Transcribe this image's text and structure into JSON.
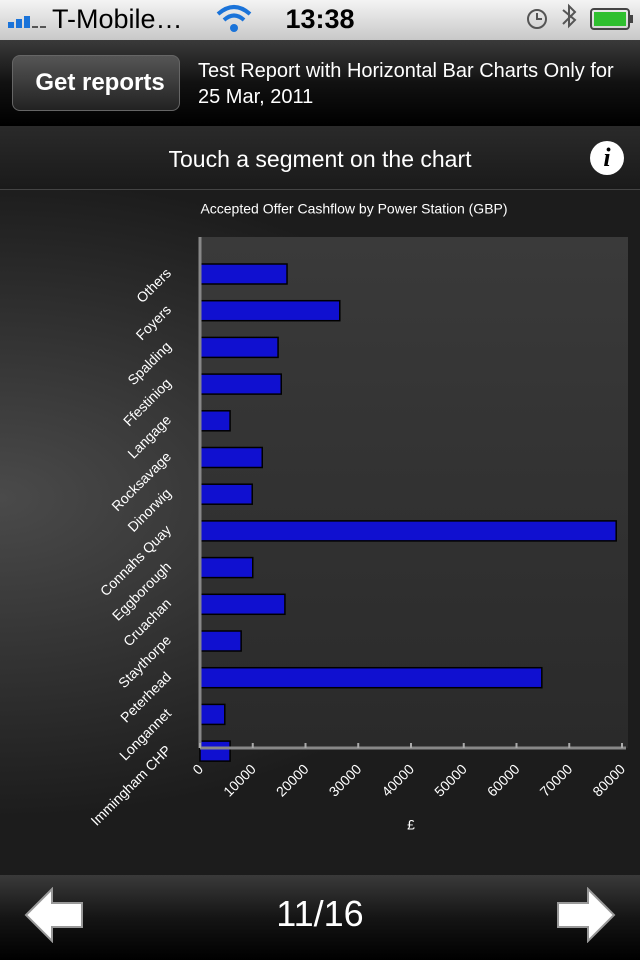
{
  "status_bar": {
    "carrier": "T-Mobile…",
    "time": "13:38"
  },
  "nav_bar": {
    "back_button": "Get reports",
    "title": "Test Report with Horizontal Bar Charts Only for 25 Mar, 2011"
  },
  "hint_bar": {
    "text": "Touch a segment on the chart"
  },
  "chart_data": {
    "type": "hbar",
    "title": "Accepted Offer Cashflow by Power Station (GBP)",
    "x_label": "£",
    "categories": [
      "Others",
      "Foyers",
      "Spalding",
      "Ffestiniog",
      "Langage",
      "Rocksavage",
      "Dinorwig",
      "Connahs Quay",
      "Eggborough",
      "Cruachan",
      "Staythorpe",
      "Peterhead",
      "Longannet",
      "Immingham CHP"
    ],
    "values": [
      16500,
      26500,
      14800,
      15400,
      5700,
      11800,
      9900,
      78900,
      10000,
      16100,
      7800,
      64800,
      4700,
      5700
    ],
    "color": "#1010d0",
    "xlim": [
      0,
      80000
    ],
    "xticks": [
      0,
      10000,
      20000,
      30000,
      40000,
      50000,
      60000,
      70000,
      80000
    ]
  },
  "footer": {
    "page": "11/16"
  }
}
